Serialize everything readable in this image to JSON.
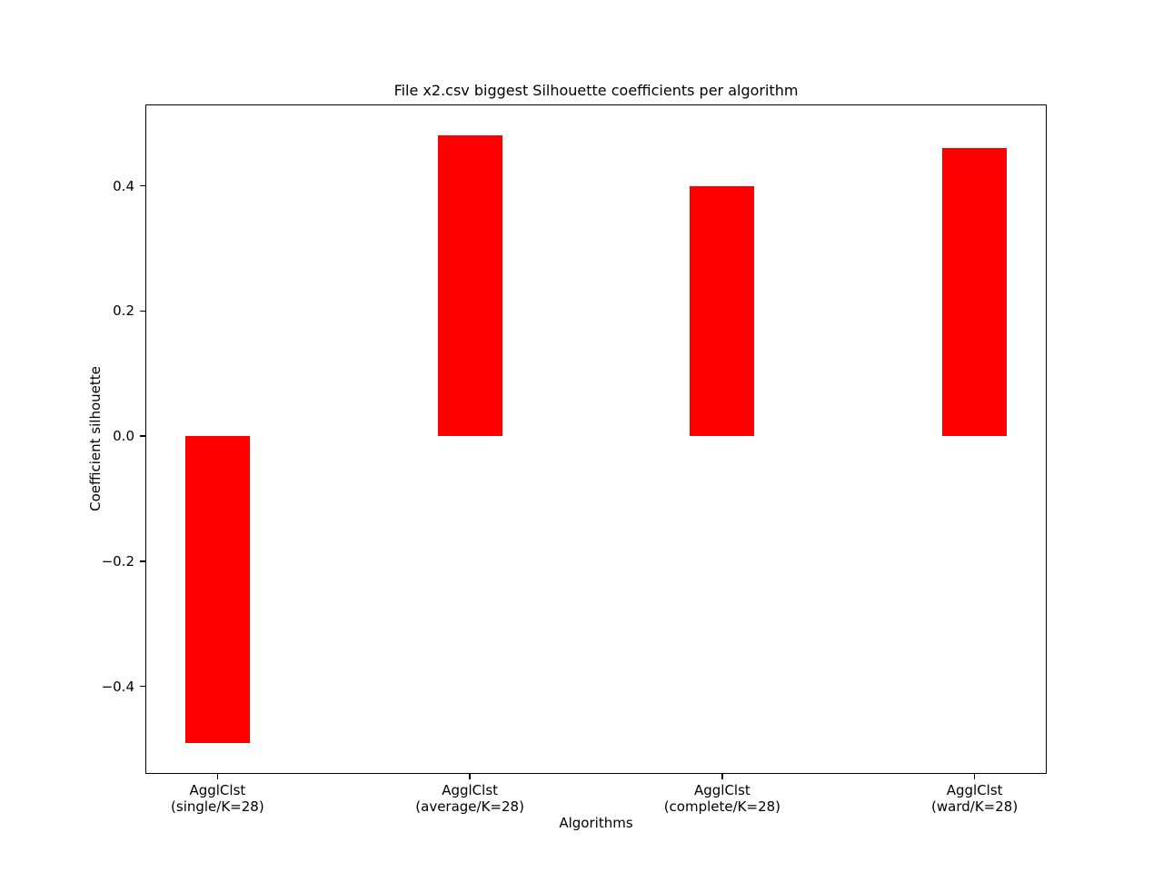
{
  "chart_data": {
    "type": "bar",
    "title": "File x2.csv biggest Silhouette coefficients per algorithm",
    "xlabel": "Algorithms",
    "ylabel": "Coefficient silhouette",
    "categories": [
      {
        "line1": "AgglClst",
        "line2": "(single/K=28)"
      },
      {
        "line1": "AgglClst",
        "line2": "(average/K=28)"
      },
      {
        "line1": "AgglClst",
        "line2": "(complete/K=28)"
      },
      {
        "line1": "AgglClst",
        "line2": "(ward/K=28)"
      }
    ],
    "values": [
      -0.49,
      0.48,
      0.4,
      0.46
    ],
    "bar_color": "#ff0000",
    "axis_color": "#000000",
    "background_color": "#ffffff",
    "ylim": [
      -0.54,
      0.53
    ],
    "yticks": [
      0.4,
      0.2,
      0.0,
      -0.2,
      -0.4
    ],
    "ytick_labels": [
      "0.4",
      "0.2",
      "0.0",
      "−0.2",
      "−0.4"
    ],
    "grid": "off",
    "legend": "none"
  }
}
